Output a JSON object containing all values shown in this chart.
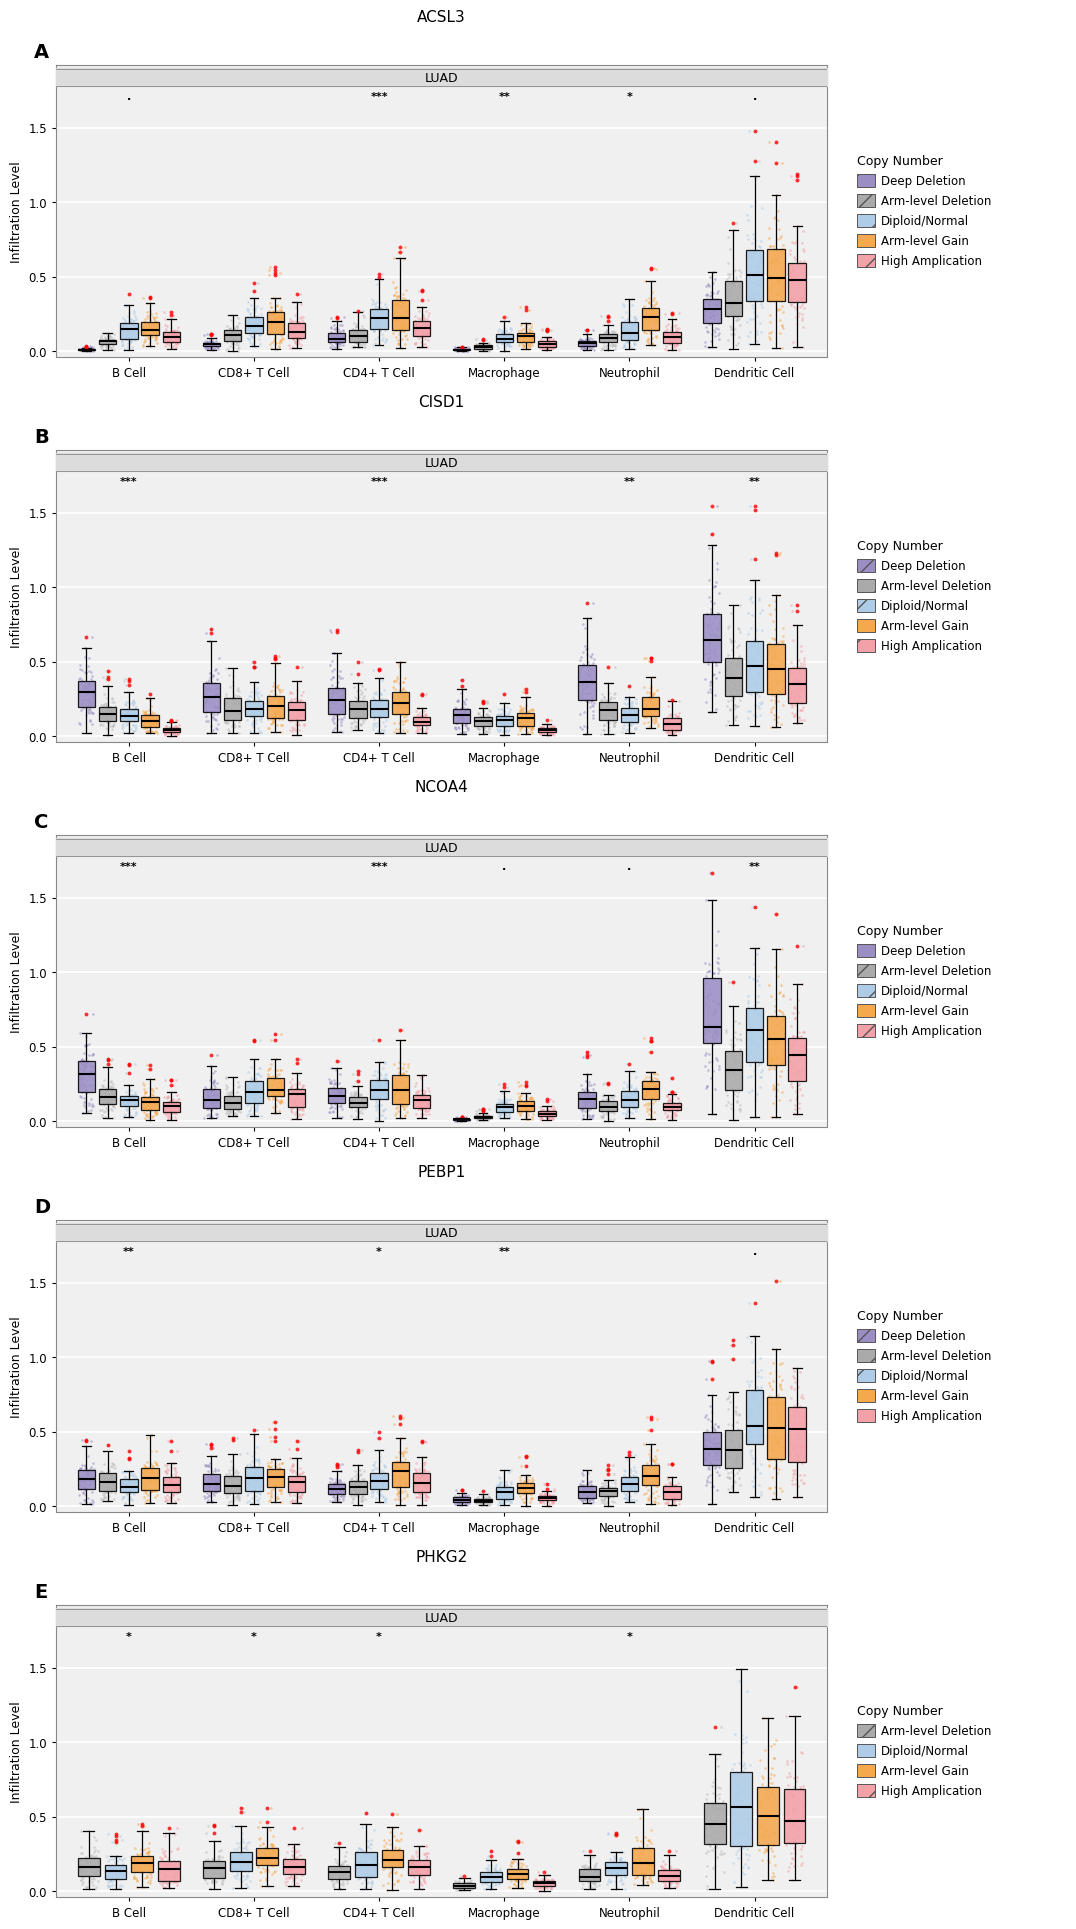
{
  "panels": [
    "A",
    "B",
    "C",
    "D",
    "E"
  ],
  "titles": [
    "ACSL3",
    "CISD1",
    "NCOA4",
    "PEBP1",
    "PHKG2"
  ],
  "subtitle": "LUAD",
  "xlabel_categories": [
    "B Cell",
    "CD8+ T Cell",
    "CD4+ T Cell",
    "Macrophage",
    "Neutrophil",
    "Dendritic Cell"
  ],
  "ylabel": "Infiltration Level",
  "copy_number_labels_5": [
    "Deep Deletion",
    "Arm-level Deletion",
    "Diploid/Normal",
    "Arm-level Gain",
    "High Amplication"
  ],
  "copy_number_labels_4": [
    "Arm-level Deletion",
    "Diploid/Normal",
    "Arm-level Gain",
    "High Amplication"
  ],
  "box_colors_5": [
    "#9B8EC4",
    "#AAAAAA",
    "#AECCE8",
    "#F5A84E",
    "#F4A0A8"
  ],
  "box_colors_4": [
    "#AAAAAA",
    "#AECCE8",
    "#F5A84E",
    "#F4A0A8"
  ],
  "scatter_colors_5": [
    "#9B8EC4",
    "#BBBBBB",
    "#AECCE8",
    "#F5A84E",
    "#F4A0A8"
  ],
  "scatter_colors_4": [
    "#BBBBBB",
    "#AECCE8",
    "#F5A84E",
    "#F4A0A8"
  ],
  "significance_annotations": {
    "A": {
      "CD4+ T Cell": "***",
      "Macrophage": "**",
      "Neutrophil": "*",
      "B Cell": ".",
      "Dendritic Cell": "."
    },
    "B": {
      "B Cell": "***",
      "CD4+ T Cell": "***",
      "Neutrophil": "**",
      "Dendritic Cell": "**"
    },
    "C": {
      "B Cell": "***",
      "CD4+ T Cell": "***",
      "Neutrophil": ".",
      "Macrophage": ".",
      "Dendritic Cell": "**"
    },
    "D": {
      "B Cell": "**",
      "CD4+ T Cell": "*",
      "Macrophage": "**",
      "Dendritic Cell": "."
    },
    "E": {
      "B Cell": "*",
      "CD8+ T Cell": "*",
      "CD4+ T Cell": "*",
      "Neutrophil": "*"
    }
  },
  "panel_bg": "#F0F0F0",
  "strip_bg": "#DCDCDC",
  "grid_color": "#FFFFFF"
}
